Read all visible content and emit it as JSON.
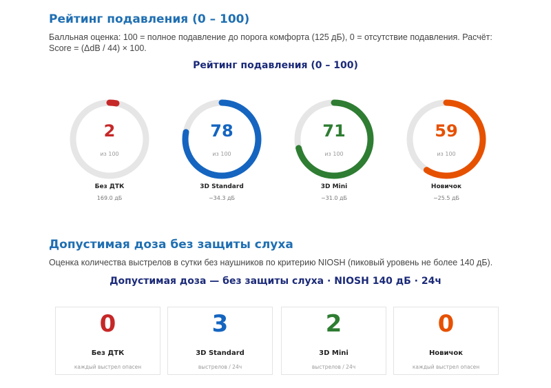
{
  "rating": {
    "heading": "Рейтинг подавления (0 – 100)",
    "description": "Балльная оценка: 100 = полное подавление до порога комфорта (125 дБ), 0 = отсутствие подавления. Расчёт: Score = (ΔdB / 44) × 100.",
    "chart_title": "Рейтинг подавления (0 – 100)",
    "out_of_label": "из 100",
    "gauges": [
      {
        "name": "Без ДТК",
        "score": 2,
        "db": "169.0 дБ",
        "color": "#c62828"
      },
      {
        "name": "3D Standard",
        "score": 78,
        "db": "−34.3 дБ",
        "color": "#1565c0"
      },
      {
        "name": "3D Mini",
        "score": 71,
        "db": "−31.0 дБ",
        "color": "#2e7d32"
      },
      {
        "name": "Новичок",
        "score": 59,
        "db": "−25.5 дБ",
        "color": "#e65100"
      }
    ]
  },
  "dose": {
    "heading": "Допустимая доза без защиты слуха",
    "description": "Оценка количества выстрелов в сутки без наушников по критерию NIOSH (пиковый уровень не более 140 дБ).",
    "chart_title": "Допустимая доза — без защиты слуха · NIOSH 140 дБ · 24ч",
    "cards": [
      {
        "name": "Без ДТК",
        "count": "0",
        "note": "каждый выстрел опасен",
        "color": "#c62828"
      },
      {
        "name": "3D Standard",
        "count": "3",
        "note": "выстрелов / 24ч",
        "color": "#1565c0"
      },
      {
        "name": "3D Mini",
        "count": "2",
        "note": "выстрелов / 24ч",
        "color": "#2e7d32"
      },
      {
        "name": "Новичок",
        "count": "0",
        "note": "каждый выстрел опасен",
        "color": "#e65100"
      }
    ]
  },
  "track_color": "#e6e6e6"
}
